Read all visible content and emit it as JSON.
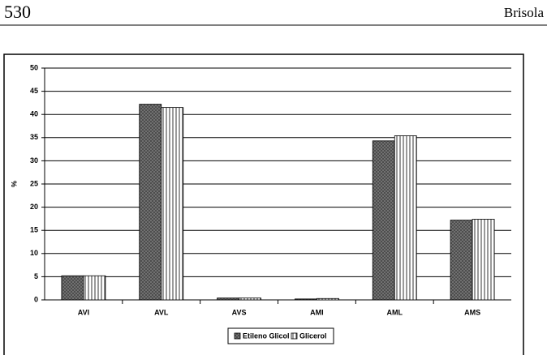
{
  "header": {
    "page": "530",
    "running_head": "Brisola"
  },
  "chart_data": {
    "type": "bar",
    "ylabel": "%",
    "categories": [
      "AVI",
      "AVL",
      "AVS",
      "AMI",
      "AML",
      "AMS"
    ],
    "series": [
      {
        "name": "Etileno Glicol",
        "color": "#7a7a7a",
        "values": [
          5.2,
          42.2,
          0.4,
          0.2,
          34.3,
          17.2
        ]
      },
      {
        "name": "Glicerol",
        "color": "#ffffff",
        "values": [
          5.2,
          41.5,
          0.4,
          0.3,
          35.4,
          17.4
        ]
      }
    ],
    "ylim": [
      0,
      50
    ],
    "yticks": [
      0,
      5,
      10,
      15,
      20,
      25,
      30,
      35,
      40,
      45,
      50
    ],
    "grid": true,
    "legend": "bottom"
  }
}
